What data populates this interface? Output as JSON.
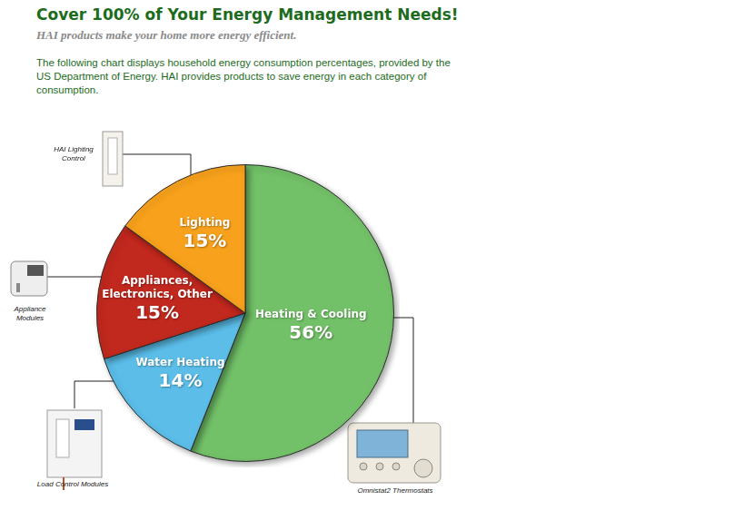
{
  "chart_data": {
    "type": "pie",
    "title": "Cover 100% of Your Energy Management Needs!",
    "subtitle": "HAI products make your home more energy efficient.",
    "categories": [
      "Heating & Cooling",
      "Water Heating",
      "Appliances, Electronics, Other",
      "Lighting"
    ],
    "values": [
      56,
      14,
      15,
      15
    ],
    "value_labels": [
      "56%",
      "14%",
      "15%",
      "15%"
    ],
    "colors": [
      "#72c068",
      "#5bbde8",
      "#c1281e",
      "#f7a11c"
    ],
    "data_labels": true,
    "legend": false,
    "annotations": [
      {
        "text": "The following chart displays household energy consumption percentages, provided by the US Department of Energy.  HAI provides products to save energy in each category of consumption."
      },
      {
        "text": "HAI Lighting Control",
        "category": "Lighting"
      },
      {
        "text": "Appliance Modules",
        "category": "Appliances, Electronics, Other"
      },
      {
        "text": "Load Control Modules",
        "category": "Water Heating"
      },
      {
        "text": "Omnistat2 Thermostats",
        "category": "Heating & Cooling"
      }
    ]
  }
}
